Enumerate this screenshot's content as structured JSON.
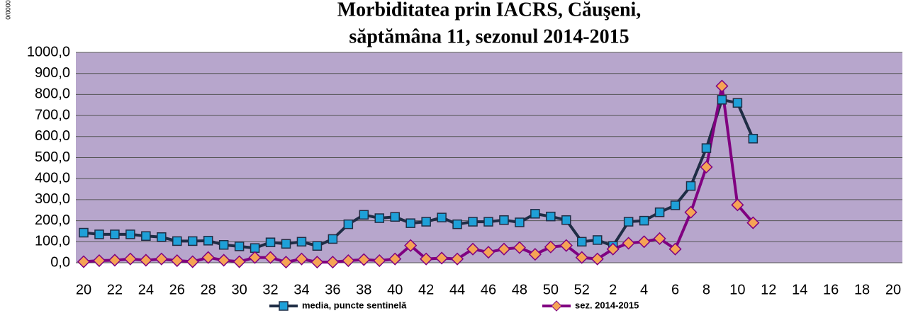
{
  "chart_data": {
    "type": "line",
    "title": [
      "Morbiditatea prin IACRS, Căuşeni,",
      "săptămâna 11, sezonul  2014-2015"
    ],
    "y_label": "0/0000",
    "categories": [
      "20",
      null,
      "22",
      null,
      "24",
      null,
      "26",
      null,
      "28",
      null,
      "30",
      null,
      "32",
      null,
      "34",
      null,
      "36",
      null,
      "38",
      null,
      "40",
      null,
      "42",
      null,
      "44",
      null,
      "46",
      null,
      "48",
      null,
      "50",
      null,
      "52",
      null,
      "2",
      null,
      "4",
      null,
      "6",
      null,
      "8",
      null,
      "10",
      null,
      "12",
      null,
      "14",
      null,
      "16",
      null,
      "18",
      null,
      "20"
    ],
    "series": [
      {
        "name": "media, puncte sentinelă",
        "color": "#1f2d45",
        "marker_color": "#1ea0d8",
        "marker": "square",
        "values": [
          143,
          135,
          135,
          135,
          127,
          122,
          103,
          103,
          105,
          85,
          78,
          70,
          97,
          90,
          100,
          80,
          113,
          183,
          228,
          212,
          218,
          188,
          195,
          215,
          183,
          195,
          195,
          203,
          192,
          233,
          220,
          203,
          100,
          108,
          80,
          195,
          200,
          240,
          273,
          365,
          545,
          775,
          760,
          590,
          null,
          null,
          null,
          null,
          null,
          null,
          null,
          null,
          null
        ]
      },
      {
        "name": "sez. 2014-2015",
        "color": "#800080",
        "marker_color": "#f5a455",
        "marker": "diamond",
        "values": [
          5,
          10,
          12,
          18,
          12,
          18,
          10,
          5,
          25,
          12,
          5,
          25,
          25,
          3,
          18,
          3,
          3,
          10,
          15,
          10,
          18,
          82,
          18,
          22,
          18,
          65,
          50,
          65,
          72,
          40,
          75,
          82,
          25,
          18,
          65,
          93,
          100,
          115,
          65,
          240,
          455,
          840,
          275,
          190,
          null,
          null,
          null,
          null,
          null,
          null,
          null,
          null,
          null
        ]
      }
    ],
    "ylim": [
      0,
      1000
    ],
    "yticks": [
      {
        "value": 0,
        "label": "0,0"
      },
      {
        "value": 100,
        "label": "100,0"
      },
      {
        "value": 200,
        "label": "200,0"
      },
      {
        "value": 300,
        "label": "300,0"
      },
      {
        "value": 400,
        "label": "400,0"
      },
      {
        "value": 500,
        "label": "500,0"
      },
      {
        "value": 600,
        "label": "600,0"
      },
      {
        "value": 700,
        "label": "700,0"
      },
      {
        "value": 800,
        "label": "800,0"
      },
      {
        "value": 900,
        "label": "900,0"
      },
      {
        "value": 1000,
        "label": "1000,0"
      }
    ],
    "grid": true,
    "plot_background": "#b7a6cc",
    "legend": "bottom"
  }
}
